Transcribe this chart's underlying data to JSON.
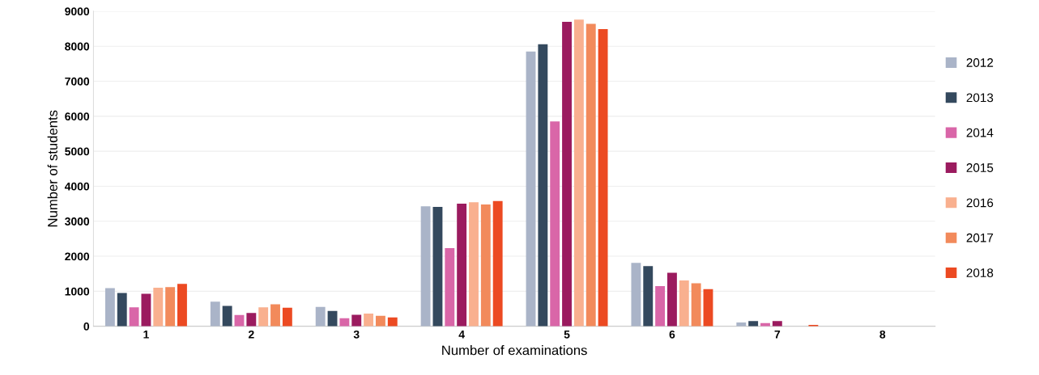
{
  "chart_data": {
    "type": "bar",
    "xlabel": "Number of examinations",
    "ylabel": "Number of students",
    "categories": [
      "1",
      "2",
      "3",
      "4",
      "5",
      "6",
      "7",
      "8"
    ],
    "series": [
      {
        "name": "2012",
        "color": "#aab4c8",
        "values": [
          1090,
          700,
          550,
          3430,
          7850,
          1810,
          110,
          0
        ]
      },
      {
        "name": "2013",
        "color": "#34495e",
        "values": [
          950,
          580,
          440,
          3410,
          8060,
          1720,
          150,
          0
        ]
      },
      {
        "name": "2014",
        "color": "#d966a8",
        "values": [
          540,
          320,
          230,
          2230,
          5850,
          1150,
          90,
          0
        ]
      },
      {
        "name": "2015",
        "color": "#9b1b5f",
        "values": [
          930,
          380,
          330,
          3500,
          8700,
          1530,
          150,
          0
        ]
      },
      {
        "name": "2016",
        "color": "#f9b08f",
        "values": [
          1100,
          540,
          360,
          3540,
          8760,
          1310,
          null,
          0
        ]
      },
      {
        "name": "2017",
        "color": "#f28a5b",
        "values": [
          1120,
          630,
          300,
          3480,
          8640,
          1230,
          null,
          0
        ]
      },
      {
        "name": "2018",
        "color": "#ec4a22",
        "values": [
          1210,
          530,
          250,
          3580,
          8490,
          1060,
          40,
          0
        ]
      }
    ],
    "ylim": [
      0,
      9000
    ],
    "yticks": [
      0,
      1000,
      2000,
      3000,
      4000,
      5000,
      6000,
      7000,
      8000,
      9000
    ],
    "grid": "y",
    "legend": "right"
  }
}
